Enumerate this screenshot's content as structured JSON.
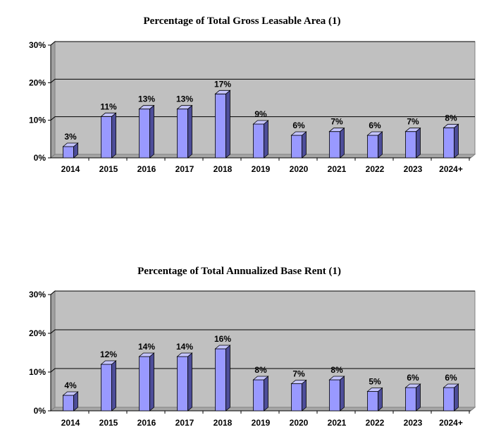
{
  "chart_data": [
    {
      "type": "bar",
      "title": "Percentage of Total Gross Leasable Area (1)",
      "categories": [
        "2014",
        "2015",
        "2016",
        "2017",
        "2018",
        "2019",
        "2020",
        "2021",
        "2022",
        "2023",
        "2024+"
      ],
      "values": [
        3,
        11,
        13,
        13,
        17,
        9,
        6,
        7,
        6,
        7,
        8
      ],
      "data_labels": [
        "3%",
        "11%",
        "13%",
        "13%",
        "17%",
        "9%",
        "6%",
        "7%",
        "6%",
        "7%",
        "8%"
      ],
      "yticks": [
        "0%",
        "10%",
        "20%",
        "30%"
      ],
      "ylim": [
        0,
        30
      ],
      "unit": "%",
      "grid": true,
      "legend": "none",
      "style": "3d-bar"
    },
    {
      "type": "bar",
      "title": "Percentage of Total Annualized Base Rent (1)",
      "categories": [
        "2014",
        "2015",
        "2016",
        "2017",
        "2018",
        "2019",
        "2020",
        "2021",
        "2022",
        "2023",
        "2024+"
      ],
      "values": [
        4,
        12,
        14,
        14,
        16,
        8,
        7,
        8,
        5,
        6,
        6
      ],
      "data_labels": [
        "4%",
        "12%",
        "14%",
        "14%",
        "16%",
        "8%",
        "7%",
        "8%",
        "5%",
        "6%",
        "6%"
      ],
      "yticks": [
        "0%",
        "10%",
        "20%",
        "30%"
      ],
      "ylim": [
        0,
        30
      ],
      "unit": "%",
      "grid": true,
      "legend": "none",
      "style": "3d-bar"
    }
  ],
  "colors": {
    "plot_background": "#c0c0c0",
    "floor": "#a6a6a6",
    "bar_front": "#9999ff",
    "bar_side": "#4d4d99",
    "bar_top": "#c4c4ff",
    "gridline": "#000000"
  }
}
